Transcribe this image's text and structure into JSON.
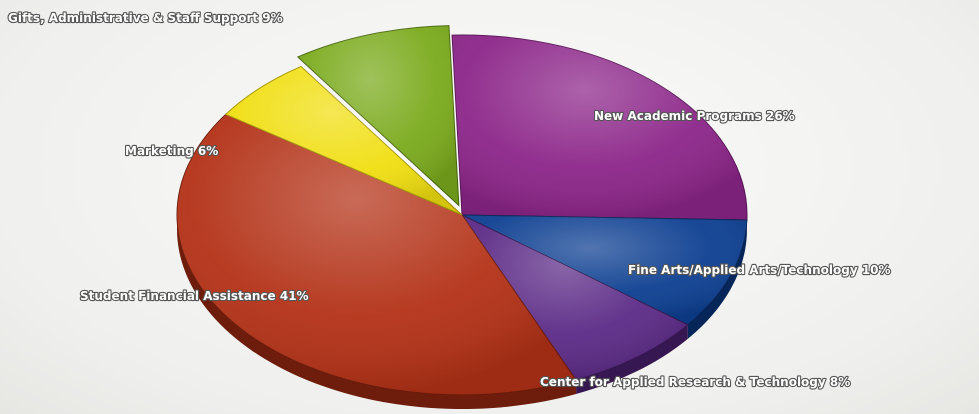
{
  "chart_data": {
    "type": "pie",
    "title": "",
    "slices": [
      {
        "label": "New Academic Programs 26%",
        "value": 26,
        "color": "#8c2589",
        "edge": "#5a1658"
      },
      {
        "label": "Fine Arts/Applied Arts/Technology 10%",
        "value": 10,
        "color": "#0d3f91",
        "edge": "#062559"
      },
      {
        "label": "Center for Applied Research & Technology 8%",
        "value": 8,
        "color": "#5b2a86",
        "edge": "#371752"
      },
      {
        "label": "Student Financial Assistance 41%",
        "value": 41,
        "color": "#b33116",
        "edge": "#6e1c0b"
      },
      {
        "label": "Marketing 6%",
        "value": 6,
        "color": "#f0de10",
        "edge": "#a89a06"
      },
      {
        "label": "Gifts, Administrative & Staff Support 9%",
        "value": 9,
        "color": "#7aaa1c",
        "edge": "#4b6a0f"
      }
    ],
    "legend": "none"
  }
}
